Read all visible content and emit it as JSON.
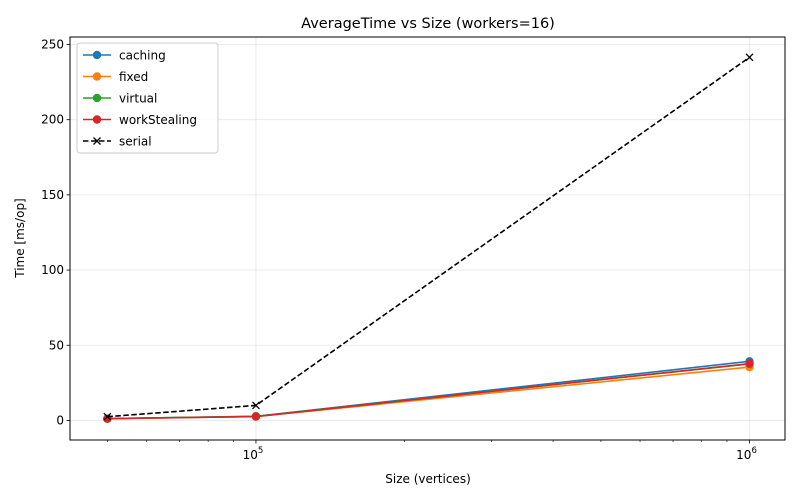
{
  "chart_data": {
    "type": "line",
    "title": "AverageTime vs Size (workers=16)",
    "xlabel": "Size (vertices)",
    "ylabel": "Time [ms/op]",
    "x_scale": "log",
    "x": [
      50000,
      100000,
      1000000
    ],
    "xlim": [
      42000,
      1180000
    ],
    "ylim": [
      -13,
      255
    ],
    "yticks": [
      0,
      50,
      100,
      150,
      200,
      250
    ],
    "xticks_major": [
      {
        "value": 100000,
        "base": "10",
        "exp": "5"
      },
      {
        "value": 1000000,
        "base": "10",
        "exp": "6"
      }
    ],
    "grid": true,
    "legend_position": "upper-left",
    "series": [
      {
        "name": "caching",
        "color": "#1f77b4",
        "marker": "circle",
        "dash": "solid",
        "values": [
          1.2,
          2.8,
          39.3
        ]
      },
      {
        "name": "fixed",
        "color": "#ff7f0e",
        "marker": "circle",
        "dash": "solid",
        "values": [
          1.1,
          2.6,
          35.5
        ]
      },
      {
        "name": "virtual",
        "color": "#2ca02c",
        "marker": "circle",
        "dash": "solid",
        "values": [
          1.2,
          2.7,
          37.6
        ]
      },
      {
        "name": "workStealing",
        "color": "#d62728",
        "marker": "circle",
        "dash": "solid",
        "values": [
          1.2,
          2.6,
          37.8
        ]
      },
      {
        "name": "serial",
        "color": "#000000",
        "marker": "x",
        "dash": "dashed",
        "values": [
          2.5,
          10.0,
          241.5
        ]
      }
    ]
  }
}
